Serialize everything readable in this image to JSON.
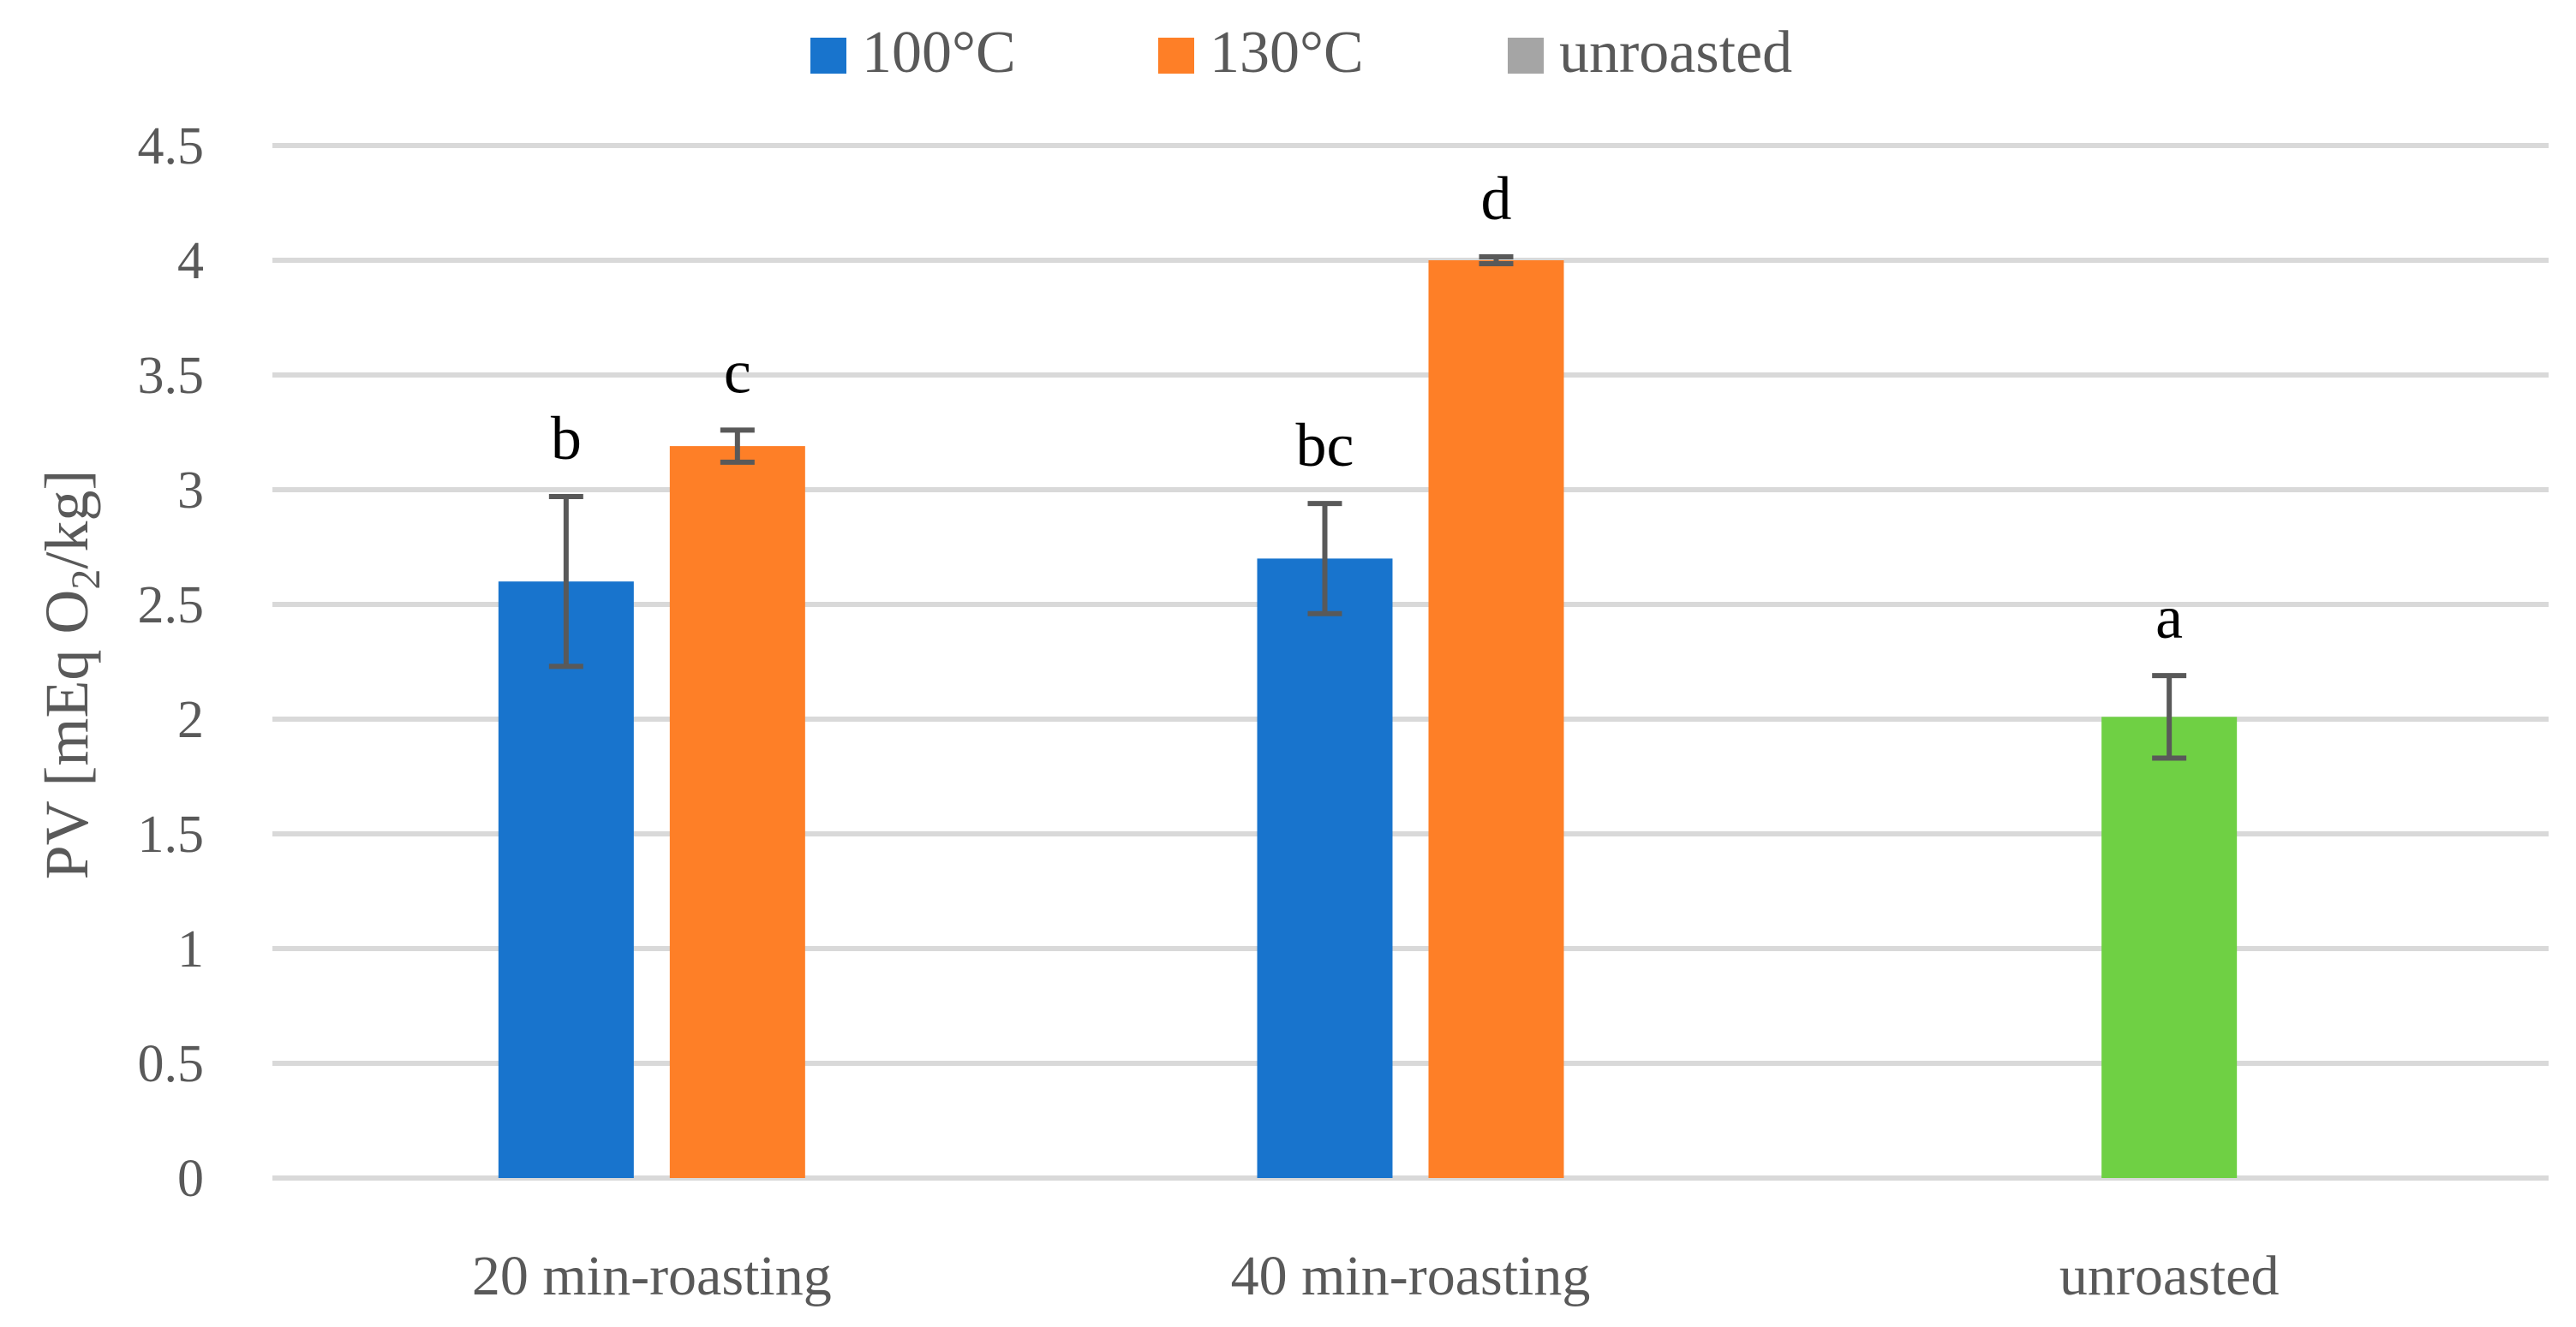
{
  "chart_data": {
    "type": "bar",
    "title": "",
    "xlabel": "",
    "ylabel": {
      "prefix": "PV [mEq O",
      "subscript": "2",
      "suffix": "/kg]"
    },
    "ylim": [
      0,
      4.5
    ],
    "yticks": [
      "0",
      "0.5",
      "1",
      "1.5",
      "2",
      "2.5",
      "3",
      "3.5",
      "4",
      "4.5"
    ],
    "grid": true,
    "legend_position": "top-center",
    "categories": [
      "20 min-roasting",
      "40 min-roasting",
      "unroasted"
    ],
    "series": [
      {
        "name": "100°C",
        "color": "#1874cd",
        "values": [
          2.6,
          2.7,
          null
        ],
        "errors": [
          0.37,
          0.24,
          null
        ],
        "letters": [
          "b",
          "bc",
          null
        ]
      },
      {
        "name": "130°C",
        "color": "#fe7f27",
        "values": [
          3.19,
          4.0,
          null
        ],
        "errors": [
          0.07,
          0.015,
          null
        ],
        "letters": [
          "c",
          "d",
          null
        ]
      },
      {
        "name": "unroasted",
        "color": "#a5a5a5",
        "values": [
          null,
          null,
          2.01
        ],
        "errors": [
          null,
          null,
          0.18
        ],
        "letters": [
          null,
          null,
          "a"
        ]
      }
    ],
    "unroasted_bar_color": "#6fd044"
  }
}
